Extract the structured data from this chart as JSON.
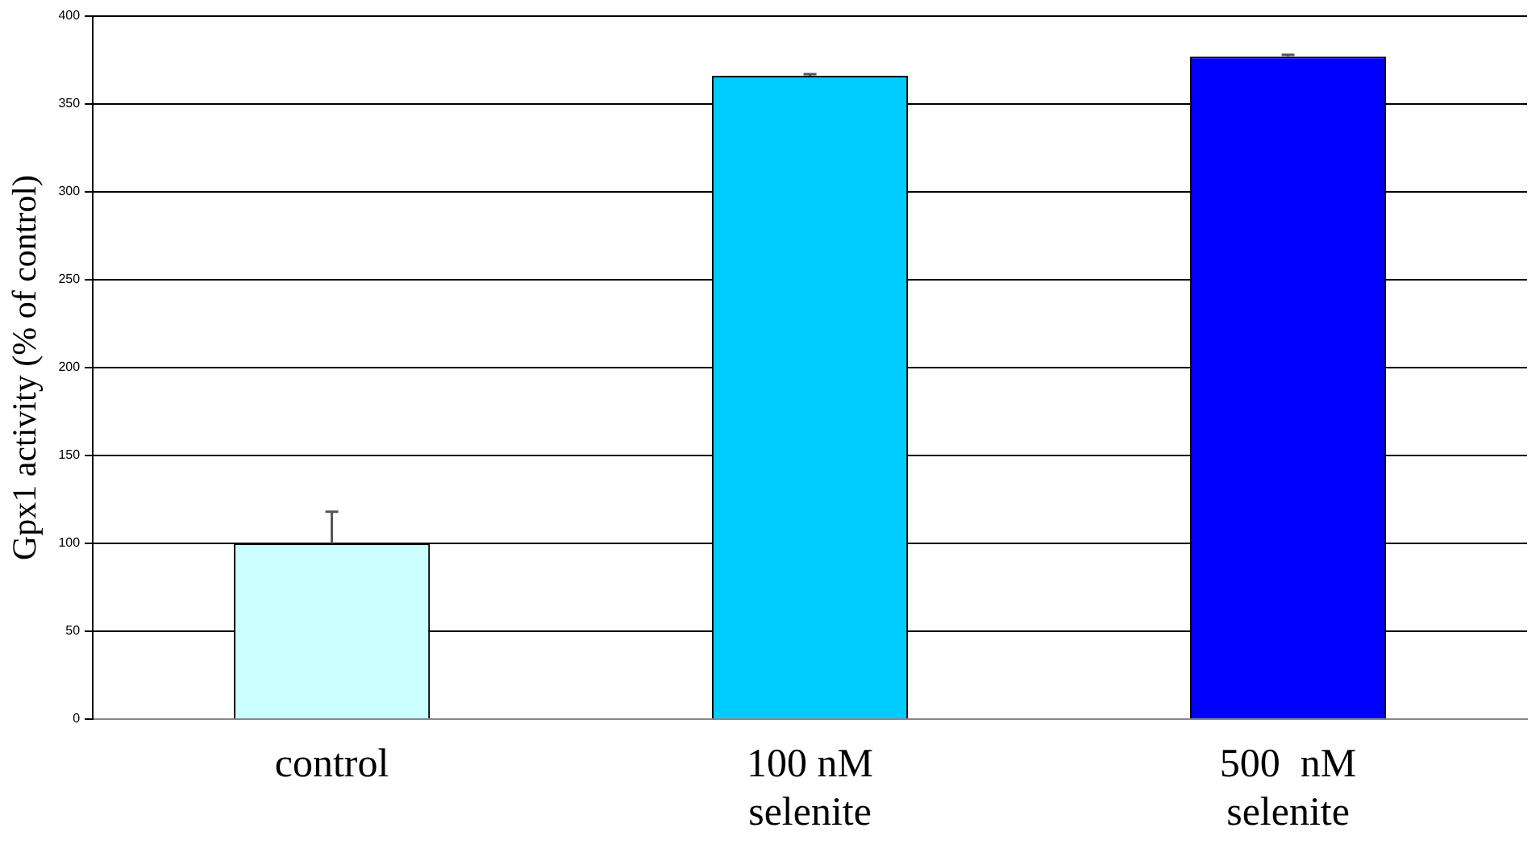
{
  "chart_data": {
    "type": "bar",
    "ylabel": "Gpx1 activity (% of control)",
    "categories": [
      "control",
      "100 nM\nselenite",
      "500  nM\nselenite"
    ],
    "values": [
      100,
      366,
      377
    ],
    "colors": [
      "#ccffff",
      "#00ccff",
      "#0000ff"
    ],
    "errors": [
      [
        100,
        118
      ],
      [
        366,
        367
      ],
      [
        377,
        378
      ]
    ],
    "ylim": [
      0,
      400
    ],
    "yticks": [
      0,
      50,
      100,
      150,
      200,
      250,
      300,
      350,
      400
    ],
    "grid": "y",
    "legend": false
  }
}
